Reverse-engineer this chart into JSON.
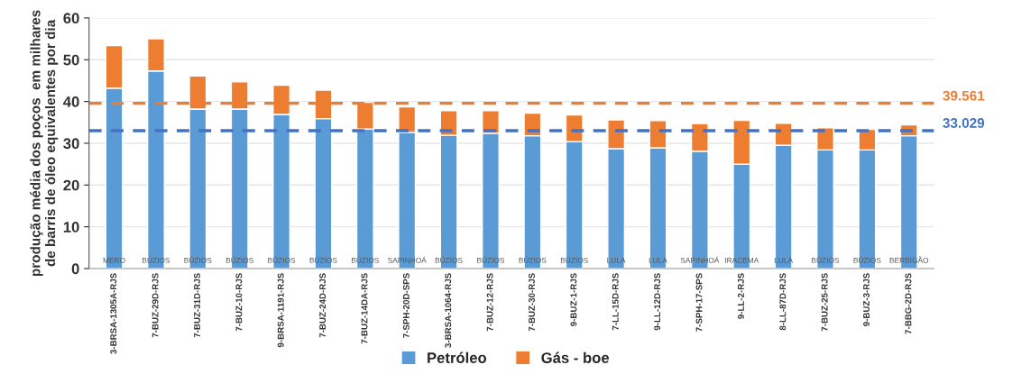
{
  "chart_data": {
    "type": "bar",
    "stacked": true,
    "ylabel": "produção média dos poços  em milhares\nde barris de óleo equivalentes por dia",
    "categories": [
      "3-BRSA-1305A-RJS",
      "7-BUZ-29D-RJS",
      "7-BUZ-31D-RJS",
      "7-BUZ-10-RJS",
      "9-BRSA-1191-RJS",
      "7-BUZ-24D-RJS",
      "7-BUZ-14DA-RJS",
      "7-SPH-20D-SPS",
      "3-BRSA-1064-RJS",
      "7-BUZ-12-RJS",
      "7-BUZ-30-RJS",
      "9-BUZ-1-RJS",
      "7-LL-15D-RJS",
      "9-LL-12D-RJS",
      "7-SPH-17-SPS",
      "9-LL-2-RJS",
      "8-LL-87D-RJS",
      "7-BUZ-25-RJS",
      "9-BUZ-3-RJS",
      "7-BBG-2D-RJS"
    ],
    "series": [
      {
        "name": "Petróleo",
        "color": "#5b9bd5",
        "values": [
          43.2,
          47.3,
          38.2,
          38.2,
          36.9,
          35.9,
          33.4,
          32.6,
          31.9,
          32.4,
          31.8,
          30.4,
          28.7,
          28.9,
          28.1,
          25.0,
          29.5,
          28.4,
          28.4,
          31.8
        ]
      },
      {
        "name": "Gás - boe",
        "color": "#ed7d31",
        "values": [
          10.2,
          7.7,
          7.9,
          6.5,
          7.0,
          6.8,
          6.4,
          6.1,
          5.9,
          5.4,
          5.4,
          6.4,
          6.9,
          6.5,
          6.6,
          10.5,
          5.3,
          5.3,
          4.9,
          2.6
        ]
      }
    ],
    "ylim": [
      0,
      60
    ],
    "yticks": [
      0,
      10,
      20,
      30,
      40,
      50,
      60
    ],
    "grid": "y",
    "legend": "bottom",
    "ref_lines": [
      {
        "axis": "y",
        "value": 39.561,
        "label": "39.561",
        "color": "#ed7d31",
        "line_style": "dashed"
      },
      {
        "axis": "y",
        "value": 33.029,
        "label": "33.029",
        "color": "#4472c4",
        "line_style": "dashed"
      }
    ],
    "annotations": [
      "MERO",
      "BÚZIOS",
      "BÚZIOS",
      "BÚZIOS",
      "BÚZIOS",
      "BÚZIOS",
      "BÚZIOS",
      "SAPINHOÁ",
      "BÚZIOS",
      "BÚZIOS",
      "BÚZIOS",
      "BÚZIOS",
      "LULA",
      "LULA",
      "SAPINHOÁ",
      "IRACEMA",
      "LULA",
      "BÚZIOS",
      "BÚZIOS",
      "BERBIGÃO"
    ]
  }
}
